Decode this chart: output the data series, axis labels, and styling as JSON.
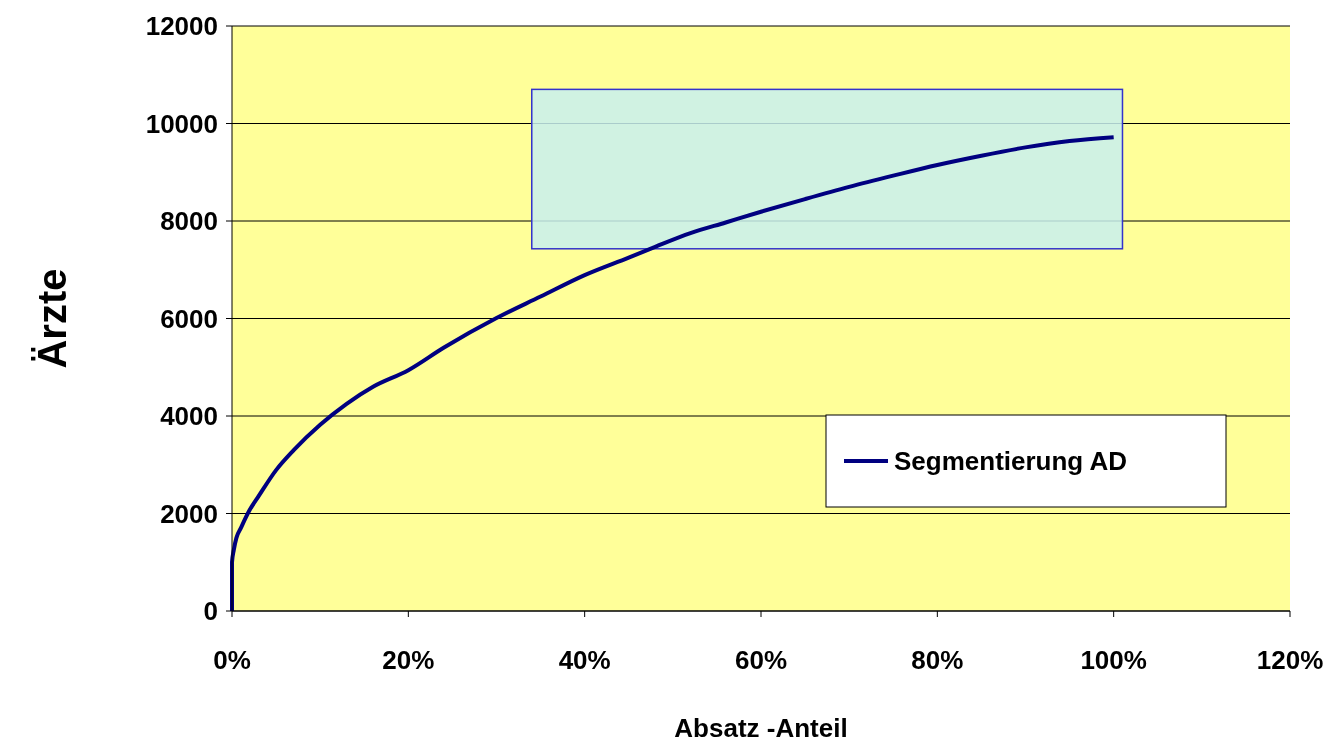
{
  "chart_data": {
    "type": "line",
    "xlabel": "Absatz -Anteil",
    "ylabel": "Ärzte",
    "xlim": [
      0,
      120
    ],
    "ylim": [
      0,
      12000
    ],
    "xticks": [
      {
        "value": 0,
        "label": "0%"
      },
      {
        "value": 20,
        "label": "20%"
      },
      {
        "value": 40,
        "label": "40%"
      },
      {
        "value": 60,
        "label": "60%"
      },
      {
        "value": 80,
        "label": "80%"
      },
      {
        "value": 100,
        "label": "100%"
      },
      {
        "value": 120,
        "label": "120%"
      }
    ],
    "yticks": [
      0,
      2000,
      4000,
      6000,
      8000,
      10000,
      12000
    ],
    "grid": "y",
    "legend": "bottom right",
    "line_style": "solid",
    "series": [
      {
        "name": "Segmentierung AD",
        "color": "#000080",
        "x": [
          0,
          0,
          0.2,
          0.5,
          1,
          2,
          3,
          5,
          7,
          10,
          13,
          16,
          20,
          24,
          30,
          35,
          40,
          45,
          48,
          52,
          56,
          60,
          65,
          70,
          75,
          80,
          85,
          90,
          95,
          100
        ],
        "values": [
          0,
          1000,
          1250,
          1500,
          1700,
          2070,
          2350,
          2890,
          3300,
          3820,
          4250,
          4600,
          4940,
          5400,
          6010,
          6450,
          6890,
          7250,
          7470,
          7750,
          7970,
          8190,
          8450,
          8700,
          8930,
          9150,
          9340,
          9510,
          9640,
          9720
        ]
      }
    ]
  }
}
